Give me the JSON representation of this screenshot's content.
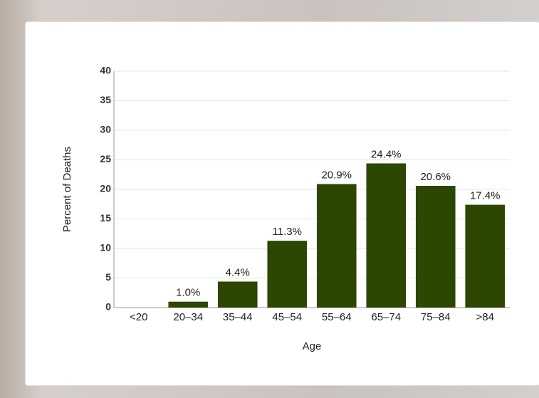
{
  "chart_data": {
    "type": "bar",
    "x_label": "Age",
    "y_label": "Percent of Deaths",
    "categories": [
      "<20",
      "20–34",
      "35–44",
      "45–54",
      "55–64",
      "65–74",
      "75–84",
      ">84"
    ],
    "values": [
      null,
      1.0,
      4.4,
      11.3,
      20.9,
      24.4,
      20.6,
      17.4
    ],
    "value_labels": [
      null,
      "1.0%",
      "4.4%",
      "11.3%",
      "20.9%",
      "24.4%",
      "20.6%",
      "17.4%"
    ],
    "color": "#2b4702",
    "ylim": [
      0,
      40
    ],
    "yticks": [
      0,
      5,
      10,
      15,
      20,
      25,
      30,
      35,
      40
    ],
    "grid": true
  }
}
